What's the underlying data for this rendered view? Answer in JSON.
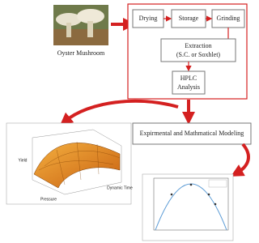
{
  "source": {
    "label": "Oyster Mushroom"
  },
  "process": {
    "steps": [
      "Drying",
      "Storage",
      "Grinding"
    ],
    "extraction": {
      "title": "Extraction",
      "subtitle": "(S.C. or Soxhlet)"
    },
    "analysis": {
      "line1": "HPLC",
      "line2": "Analysis"
    }
  },
  "modeling": {
    "label": "Expirmental and Mathmatical Modeling"
  },
  "surface_plot": {
    "z_label": "Yield",
    "x_label": "Pressure",
    "y_label": "Dynamic Time"
  }
}
